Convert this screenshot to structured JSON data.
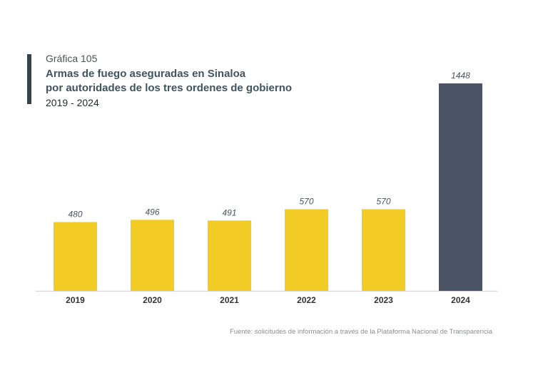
{
  "header": {
    "subtitle": "Gráfica 105",
    "title_line1": "Armas de fuego aseguradas en Sinaloa",
    "title_line2": "por autoridades de los tres ordenes de gobierno",
    "period": "2019 - 2024"
  },
  "source": "Fuente: solicitudes de información a través de la Plataforma Nacional de Transparencia",
  "colors": {
    "bar": "#f2cc24",
    "highlight": "#4b5366",
    "axis": "#d9d9d9",
    "value_label": "#4b5060",
    "tick_label": "#333333"
  },
  "chart_data": {
    "type": "bar",
    "title": "Armas de fuego aseguradas en Sinaloa por autoridades de los tres ordenes de gobierno",
    "xlabel": "",
    "ylabel": "",
    "categories": [
      "2019",
      "2020",
      "2021",
      "2022",
      "2023",
      "2024"
    ],
    "values": [
      480,
      496,
      491,
      570,
      570,
      1448
    ],
    "highlight_index": 5,
    "ylim": [
      0,
      1448
    ],
    "grid": false,
    "legend": "none"
  }
}
